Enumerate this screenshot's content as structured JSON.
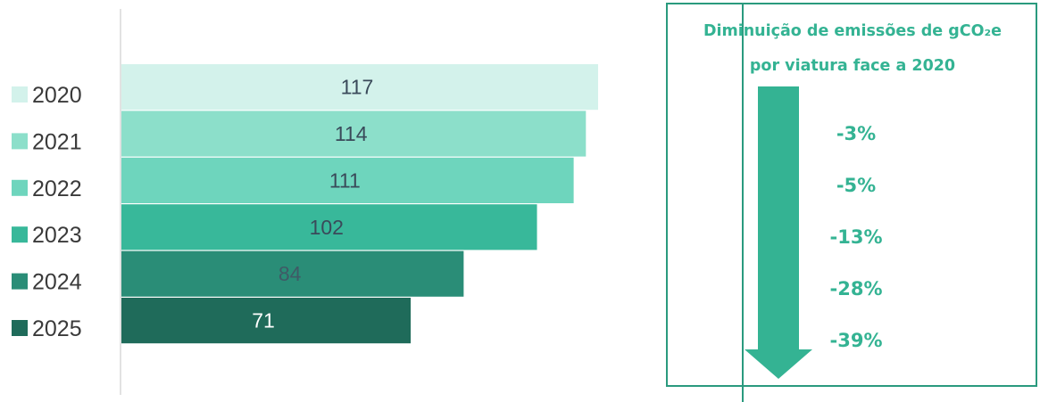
{
  "chart_data": {
    "type": "bar",
    "orientation": "horizontal",
    "categories": [
      "2020",
      "2021",
      "2022",
      "2023",
      "2024",
      "2025"
    ],
    "values": [
      117,
      114,
      111,
      102,
      84,
      71
    ],
    "colors": [
      "#d3f2eb",
      "#8cdfca",
      "#6ed5bd",
      "#38b89a",
      "#2a8d77",
      "#1f6b5a"
    ],
    "label_colors": [
      "#3a4a5a",
      "#3a4a5a",
      "#3a4a5a",
      "#3a4a5a",
      "#3f5a66",
      "#ffffff"
    ],
    "legend_position": "left",
    "xlim": [
      0,
      117
    ],
    "title": "",
    "xlabel": "",
    "ylabel": ""
  },
  "panel": {
    "title_line1": "Diminuição de emissões de gCO₂e",
    "title_line2": "por viatura face a 2020",
    "reductions": [
      "-3%",
      "-5%",
      "-13%",
      "-28%",
      "-39%"
    ],
    "accent_color": "#34b393",
    "arrow_color": "#34b393"
  }
}
